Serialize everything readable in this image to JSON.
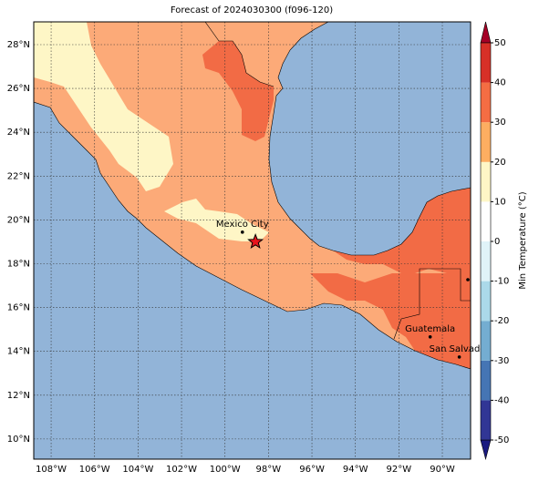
{
  "map": {
    "title": "Forecast of 2024030300 (f096-120)",
    "lon_range": [
      -108.8,
      -88.7
    ],
    "lat_range": [
      9.08,
      29.04
    ],
    "lon_ticks": [
      {
        "value": -108,
        "label": "108°W"
      },
      {
        "value": -106,
        "label": "106°W"
      },
      {
        "value": -104,
        "label": "104°W"
      },
      {
        "value": -102,
        "label": "102°W"
      },
      {
        "value": -100,
        "label": "100°W"
      },
      {
        "value": -98,
        "label": "98°W"
      },
      {
        "value": -96,
        "label": "96°W"
      },
      {
        "value": -94,
        "label": "94°W"
      },
      {
        "value": -92,
        "label": "92°W"
      },
      {
        "value": -90,
        "label": "90°W"
      }
    ],
    "lat_ticks": [
      {
        "value": 10,
        "label": "10°N"
      },
      {
        "value": 12,
        "label": "12°N"
      },
      {
        "value": 14,
        "label": "14°N"
      },
      {
        "value": 16,
        "label": "16°N"
      },
      {
        "value": 18,
        "label": "18°N"
      },
      {
        "value": 20,
        "label": "20°N"
      },
      {
        "value": 22,
        "label": "22°N"
      },
      {
        "value": 24,
        "label": "24°N"
      },
      {
        "value": 26,
        "label": "26°N"
      },
      {
        "value": 28,
        "label": "28°N"
      }
    ],
    "cities": [
      {
        "name": "Mexico City",
        "lon": -99.2,
        "lat": 19.44
      },
      {
        "name": "Guatemala",
        "lon": -90.56,
        "lat": 14.66
      },
      {
        "name": "San Salvador",
        "lon": -89.22,
        "lat": 13.74
      }
    ],
    "star": {
      "lon": -98.6,
      "lat": 19.0
    },
    "colorbar": {
      "label": "Min Temperature (°C)",
      "ticks": [
        -50,
        -40,
        -30,
        -20,
        -10,
        0,
        10,
        20,
        30,
        40,
        50
      ],
      "colors": [
        "#313695",
        "#4575b4",
        "#74add1",
        "#abd9e9",
        "#e0f3f8",
        "#fefefe",
        "#fef6c6",
        "#fdae61",
        "#f46d43",
        "#d73027"
      ],
      "under_color": "#1a1a80",
      "over_color": "#a50026"
    }
  }
}
